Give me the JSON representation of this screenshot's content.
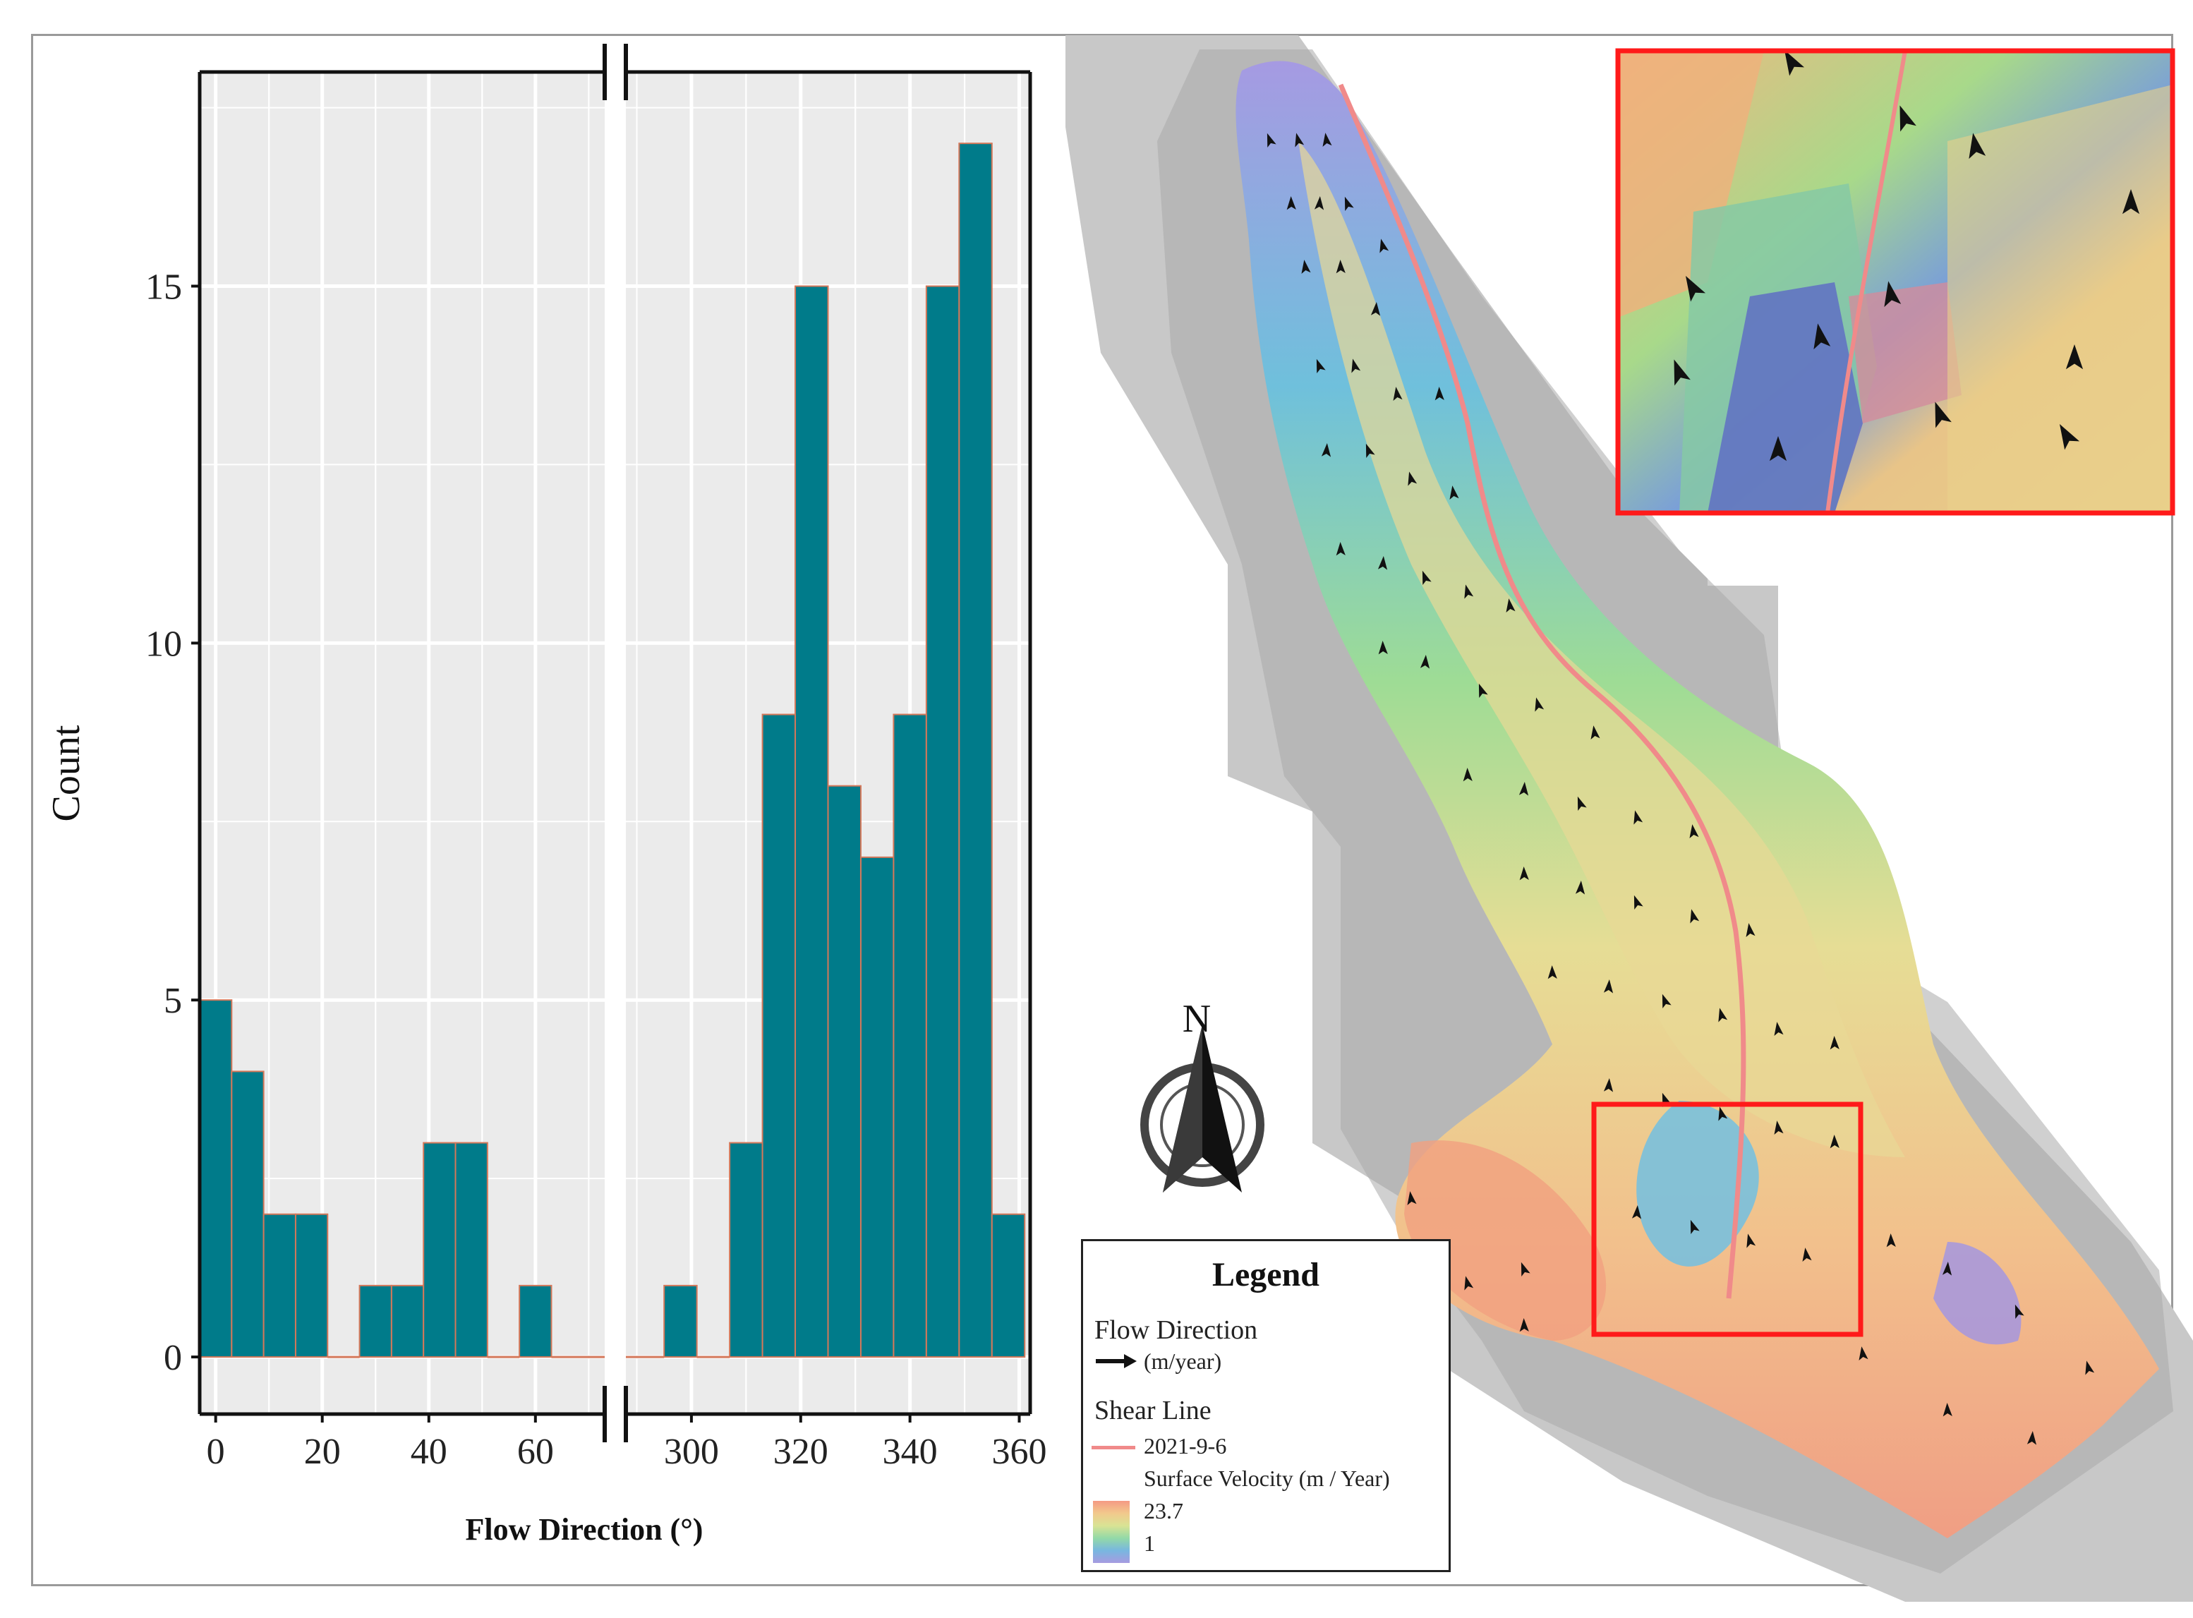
{
  "chart_data": {
    "type": "bar",
    "subtype": "histogram",
    "xlabel": "Flow Direction (°)",
    "ylabel": "Count",
    "x_axis_break": true,
    "panels": [
      {
        "xlim": [
          -3,
          73
        ],
        "ticks": [
          0,
          20,
          40,
          60
        ],
        "bins": [
          {
            "x0": -3,
            "x1": 3,
            "count": 5
          },
          {
            "x0": 3,
            "x1": 9,
            "count": 4
          },
          {
            "x0": 9,
            "x1": 15,
            "count": 2
          },
          {
            "x0": 15,
            "x1": 21,
            "count": 2
          },
          {
            "x0": 21,
            "x1": 27,
            "count": 0
          },
          {
            "x0": 27,
            "x1": 33,
            "count": 1
          },
          {
            "x0": 33,
            "x1": 39,
            "count": 1
          },
          {
            "x0": 39,
            "x1": 45,
            "count": 3
          },
          {
            "x0": 45,
            "x1": 51,
            "count": 3
          },
          {
            "x0": 51,
            "x1": 57,
            "count": 0
          },
          {
            "x0": 57,
            "x1": 63,
            "count": 1
          },
          {
            "x0": 63,
            "x1": 73,
            "count": 0
          }
        ]
      },
      {
        "xlim": [
          288,
          362
        ],
        "ticks": [
          300,
          320,
          340,
          360
        ],
        "bins": [
          {
            "x0": 288,
            "x1": 295,
            "count": 0
          },
          {
            "x0": 295,
            "x1": 301,
            "count": 1
          },
          {
            "x0": 301,
            "x1": 307,
            "count": 0
          },
          {
            "x0": 307,
            "x1": 313,
            "count": 3
          },
          {
            "x0": 313,
            "x1": 319,
            "count": 9
          },
          {
            "x0": 319,
            "x1": 325,
            "count": 15
          },
          {
            "x0": 325,
            "x1": 331,
            "count": 8
          },
          {
            "x0": 331,
            "x1": 337,
            "count": 7
          },
          {
            "x0": 337,
            "x1": 343,
            "count": 9
          },
          {
            "x0": 343,
            "x1": 349,
            "count": 15
          },
          {
            "x0": 349,
            "x1": 355,
            "count": 17
          },
          {
            "x0": 355,
            "x1": 361,
            "count": 2
          }
        ]
      }
    ],
    "ylim": [
      -0.8,
      18
    ],
    "yticks": [
      0,
      5,
      10,
      15
    ],
    "grid": true,
    "colors": {
      "bar_fill": "#007b8a",
      "bar_edge": "#d4785a",
      "panel_bg": "#ebebeb",
      "grid": "#ffffff"
    }
  },
  "map": {
    "north_label": "N",
    "colors": {
      "inset_border": "#ff1a1a",
      "shear_line": "#f08a8a",
      "hillshade": "#c9c9c9"
    }
  },
  "legend": {
    "title": "Legend",
    "flow_direction": "Flow Direction",
    "flow_unit": "(m/year)",
    "shear_line": "Shear Line",
    "shear_date": "2021-9-6",
    "velocity_title": "Surface Velocity (m / Year)",
    "velocity_max": "23.7",
    "velocity_min": "1"
  }
}
